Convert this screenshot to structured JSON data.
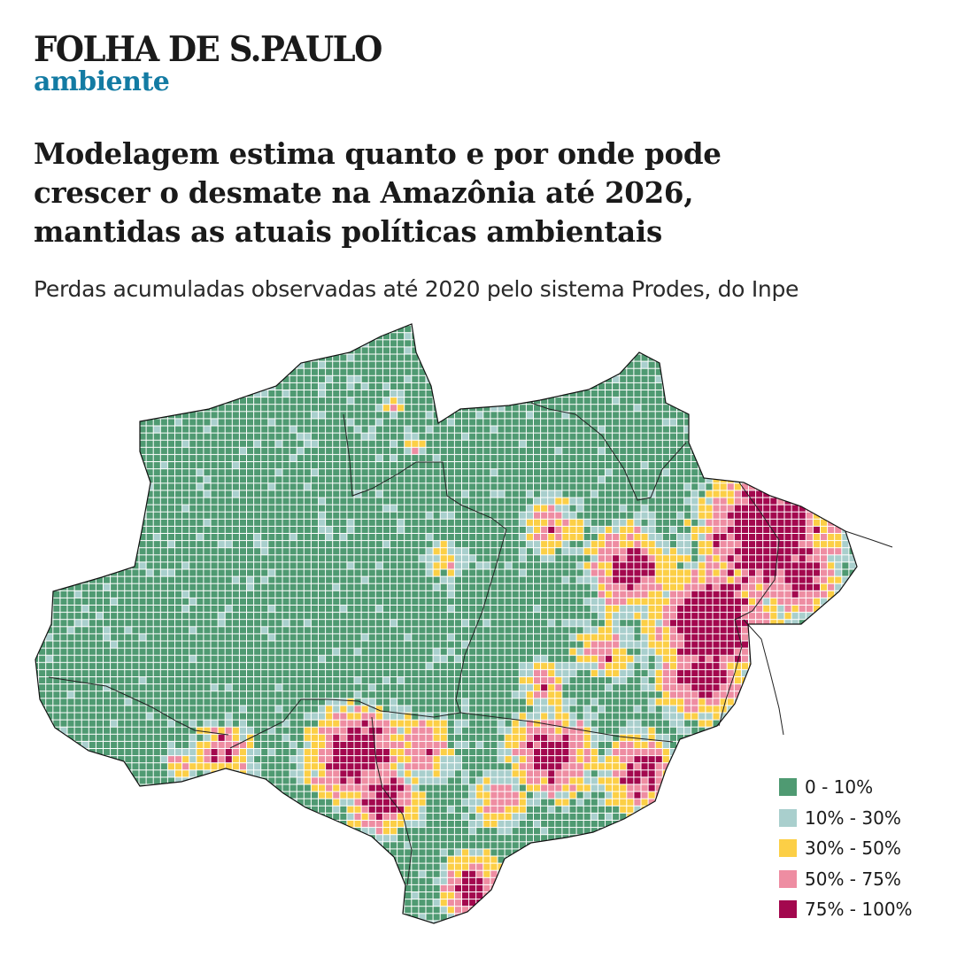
{
  "header": {
    "brand": "FOLHA DE S.PAULO",
    "section": "ambiente"
  },
  "headline": {
    "line1": "Modelagem estima quanto e por onde pode",
    "line2": "crescer o desmate na Amazônia até 2026,",
    "line3": "mantidas as atuais políticas ambientais"
  },
  "subtitle": "Perdas acumuladas observadas até 2020 pelo sistema Prodes, do Inpe",
  "legend": {
    "items": [
      {
        "label": "0 - 10%",
        "color": "#4f9a72"
      },
      {
        "label": "10% - 30%",
        "color": "#a9cfcd"
      },
      {
        "label": "30% - 50%",
        "color": "#fccf46"
      },
      {
        "label": "50% - 75%",
        "color": "#ee8da2"
      },
      {
        "label": "75% - 100%",
        "color": "#a3084e"
      }
    ]
  },
  "map_data": {
    "region": "Amazônia Legal",
    "metric": "deforestation share per grid cell",
    "classes": [
      "0 - 10%",
      "10% - 30%",
      "30% - 50%",
      "50% - 75%",
      "75% - 100%"
    ]
  }
}
